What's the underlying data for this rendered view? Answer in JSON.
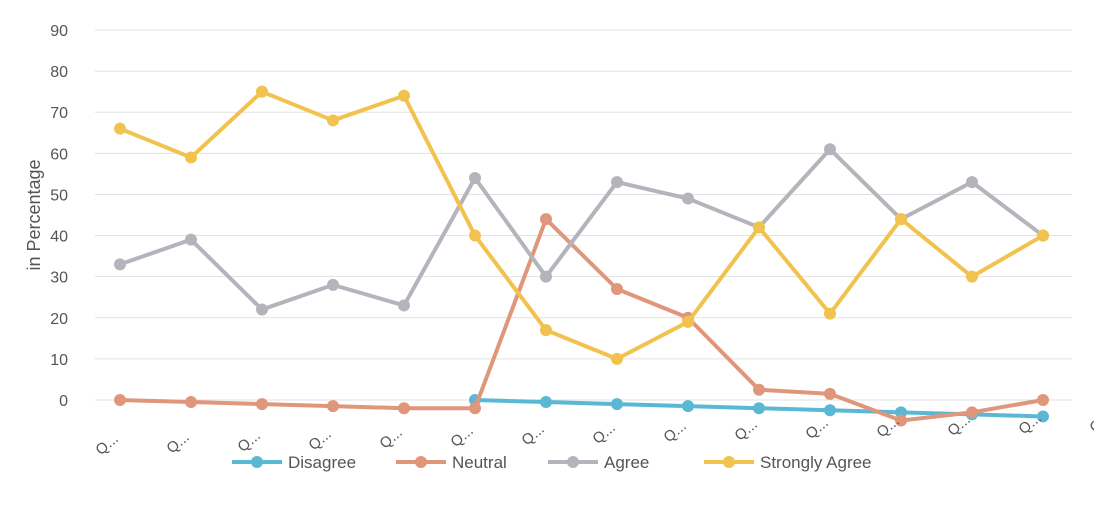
{
  "chart_data": {
    "type": "line",
    "title": "",
    "xlabel": "",
    "ylabel": "in Percentage",
    "ylim": [
      0,
      90
    ],
    "yticks": [
      0,
      10,
      20,
      30,
      40,
      50,
      60,
      70,
      80,
      90
    ],
    "grid": true,
    "legend_position": "bottom",
    "categories": [
      "Q...",
      "Q...",
      "Q...",
      "Q...",
      "Q...",
      "Q...",
      "Q...",
      "Q...",
      "Q...",
      "Q...",
      "Q...",
      "Q...",
      "Q...",
      "Q...",
      "Q..."
    ],
    "series": [
      {
        "name": "Disagree",
        "color": "#5bb8d4",
        "values": [
          null,
          null,
          null,
          null,
          null,
          0,
          -0.5,
          -1,
          -1.5,
          -2,
          -2.5,
          -3,
          -3.5,
          -4,
          null
        ]
      },
      {
        "name": "Neutral",
        "color": "#e0967a",
        "values": [
          0,
          -0.5,
          -1,
          -1.5,
          -2,
          -2,
          44,
          27,
          20,
          2.5,
          1.5,
          -5,
          -3,
          0,
          null
        ]
      },
      {
        "name": "Agree",
        "color": "#b4b4bc",
        "values": [
          33,
          39,
          22,
          28,
          23,
          54,
          30,
          53,
          49,
          42,
          61,
          44,
          53,
          40,
          null
        ]
      },
      {
        "name": "Strongly Agree",
        "color": "#f2c24e",
        "values": [
          66,
          59,
          75,
          68,
          74,
          40,
          17,
          10,
          19,
          42,
          21,
          44,
          30,
          40,
          null
        ]
      }
    ]
  }
}
